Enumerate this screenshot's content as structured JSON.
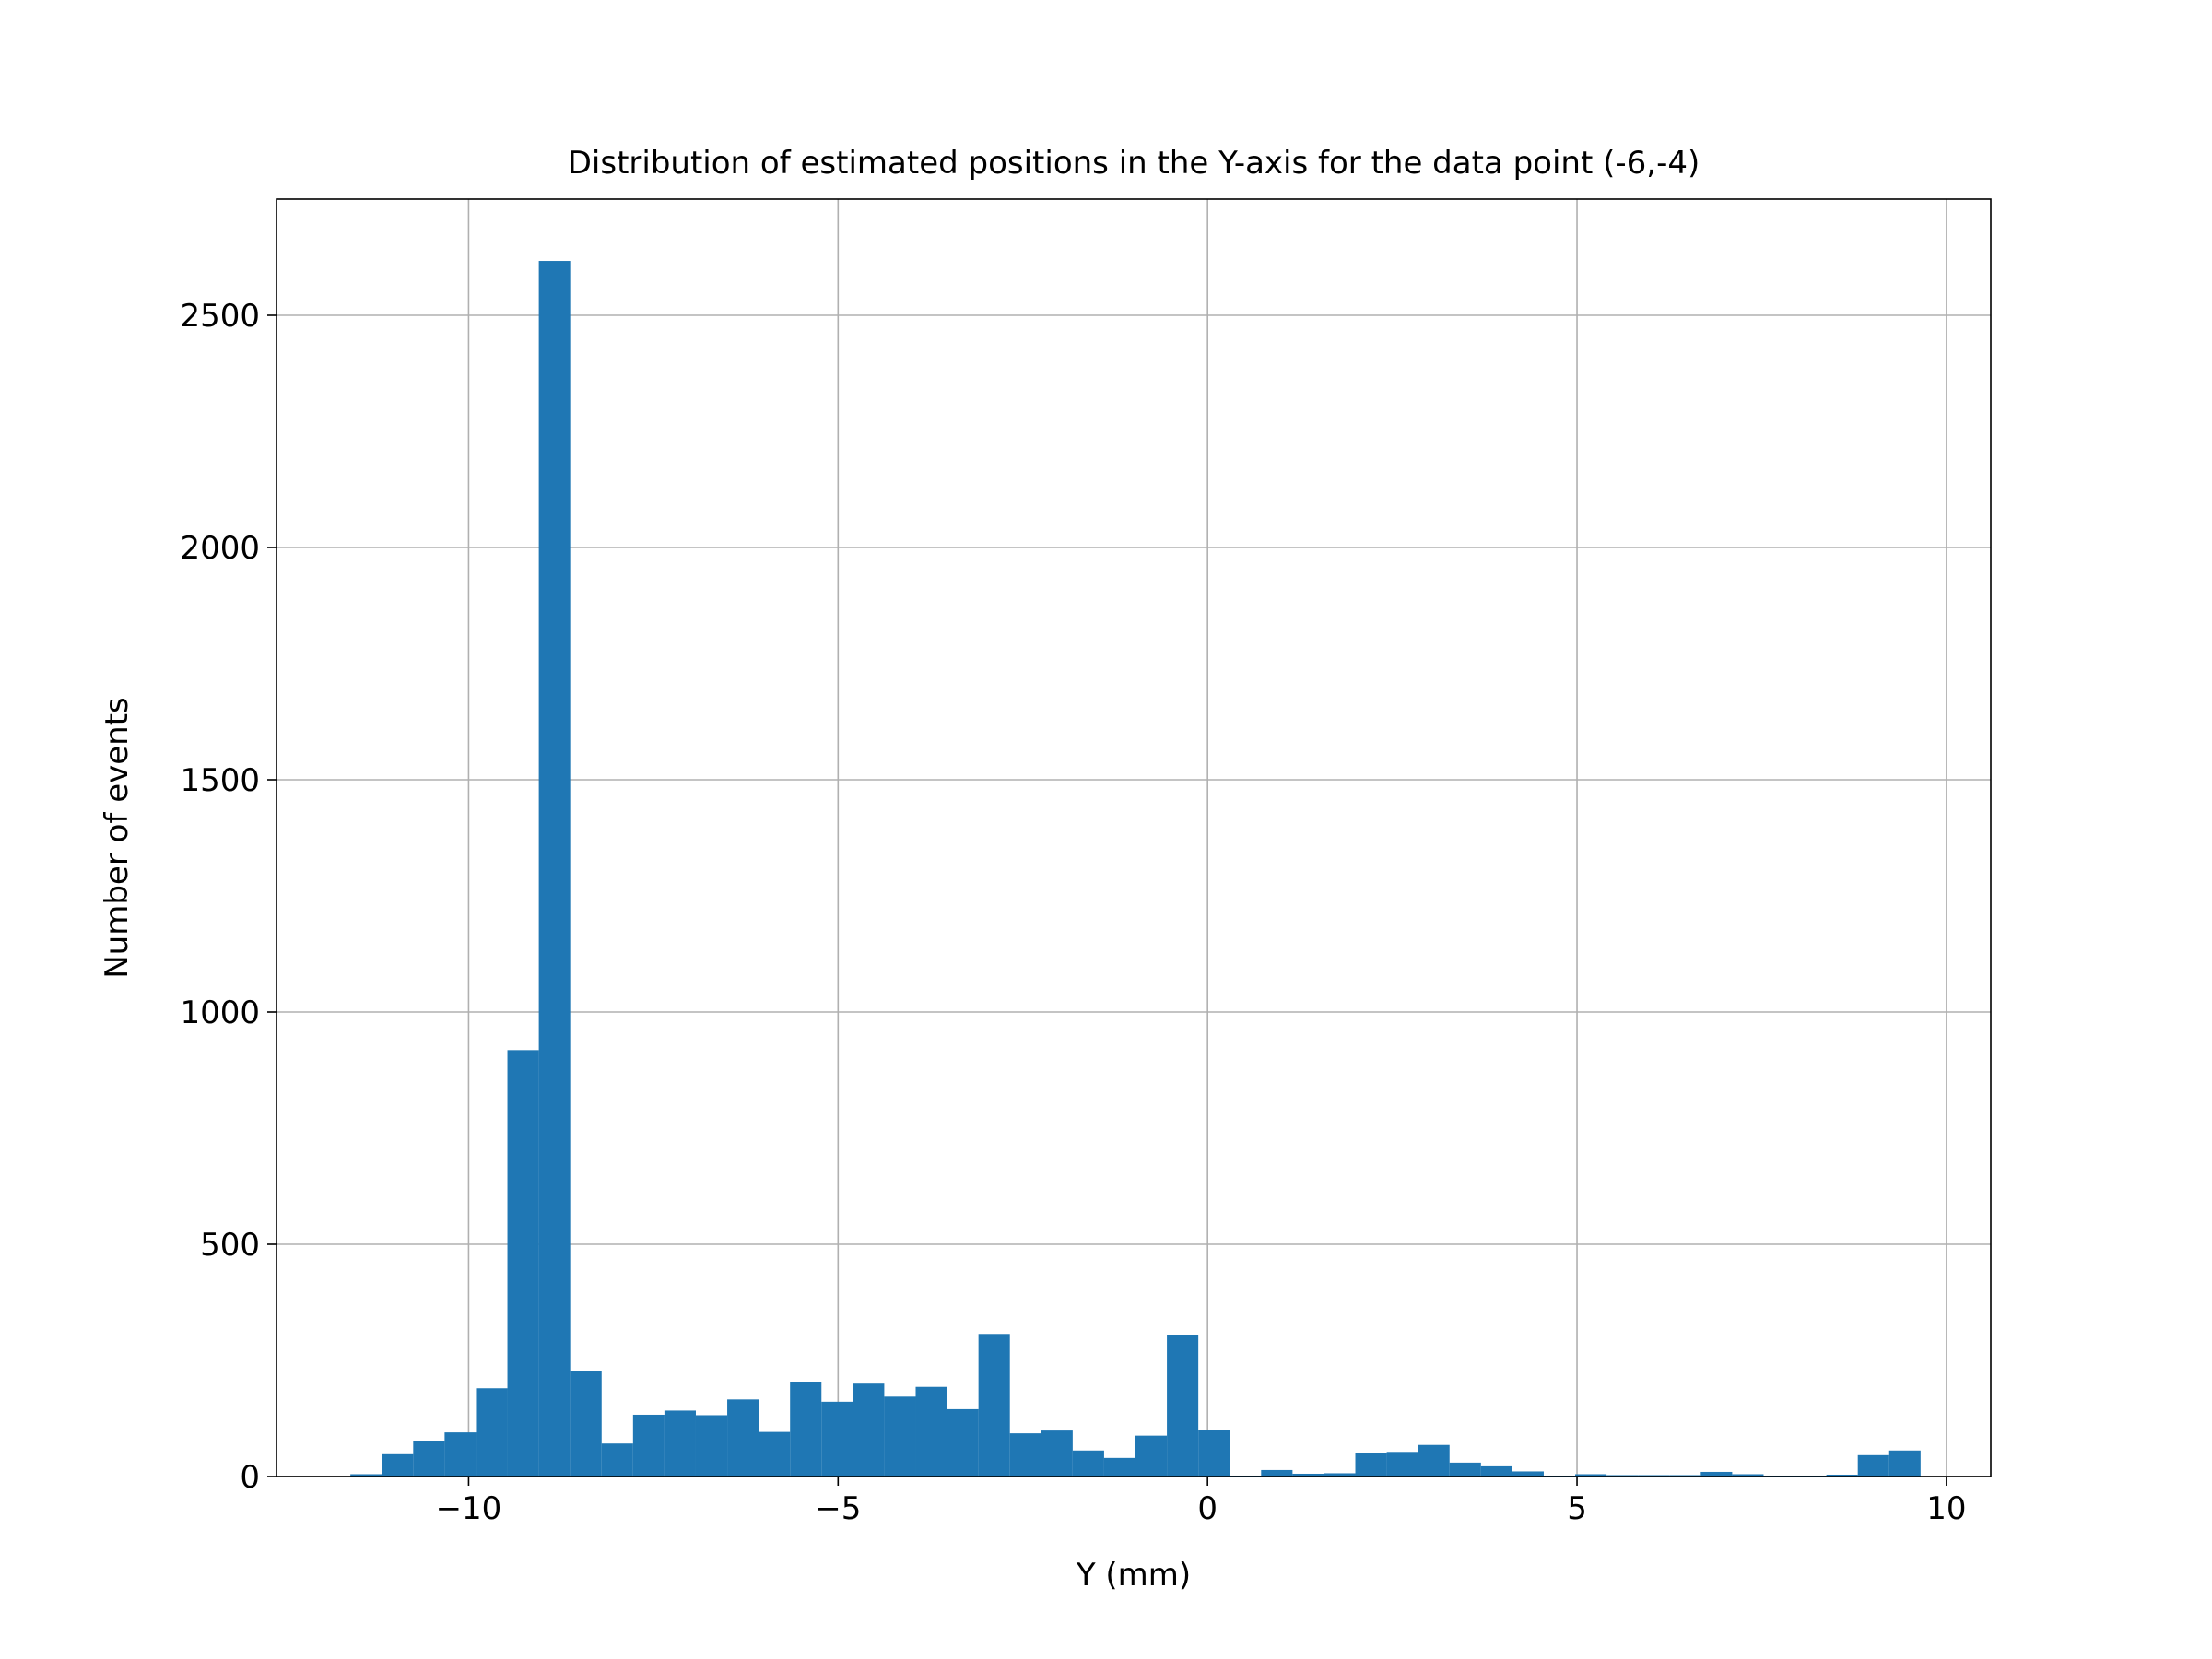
{
  "chart_data": {
    "type": "bar",
    "title": "Distribution of estimated positions in the Y-axis for the data point (-6,-4)",
    "xlabel": "Y (mm)",
    "ylabel": "Number of events",
    "xlim": [
      -12.6,
      10.6
    ],
    "ylim": [
      0,
      2750
    ],
    "xticks": [
      -10,
      -5,
      0,
      5,
      10
    ],
    "xtick_labels": [
      "−10",
      "−5",
      "0",
      "5",
      "10"
    ],
    "yticks": [
      0,
      500,
      1000,
      1500,
      2000,
      2500
    ],
    "ytick_labels": [
      "0",
      "500",
      "1000",
      "1500",
      "2000",
      "2500"
    ],
    "grid": true,
    "bar_color": "#1f77b4",
    "bin_start": -11.6,
    "bin_width": 0.425,
    "bins": [
      {
        "x0": -11.6,
        "x1": -11.175,
        "count": 5
      },
      {
        "x0": -11.175,
        "x1": -10.75,
        "count": 48
      },
      {
        "x0": -10.75,
        "x1": -10.325,
        "count": 77
      },
      {
        "x0": -10.325,
        "x1": -9.9,
        "count": 95
      },
      {
        "x0": -9.9,
        "x1": -9.475,
        "count": 190
      },
      {
        "x0": -9.475,
        "x1": -9.05,
        "count": 918
      },
      {
        "x0": -9.05,
        "x1": -8.625,
        "count": 2617
      },
      {
        "x0": -8.625,
        "x1": -8.2,
        "count": 228
      },
      {
        "x0": -8.2,
        "x1": -7.775,
        "count": 71
      },
      {
        "x0": -7.775,
        "x1": -7.35,
        "count": 133
      },
      {
        "x0": -7.35,
        "x1": -6.925,
        "count": 142
      },
      {
        "x0": -6.925,
        "x1": -6.5,
        "count": 132
      },
      {
        "x0": -6.5,
        "x1": -6.075,
        "count": 166
      },
      {
        "x0": -6.075,
        "x1": -5.65,
        "count": 96
      },
      {
        "x0": -5.65,
        "x1": -5.225,
        "count": 204
      },
      {
        "x0": -5.225,
        "x1": -4.8,
        "count": 161
      },
      {
        "x0": -4.8,
        "x1": -4.375,
        "count": 200
      },
      {
        "x0": -4.375,
        "x1": -3.95,
        "count": 172
      },
      {
        "x0": -3.95,
        "x1": -3.525,
        "count": 193
      },
      {
        "x0": -3.525,
        "x1": -3.1,
        "count": 145
      },
      {
        "x0": -3.1,
        "x1": -2.675,
        "count": 307
      },
      {
        "x0": -2.675,
        "x1": -2.25,
        "count": 93
      },
      {
        "x0": -2.25,
        "x1": -1.825,
        "count": 99
      },
      {
        "x0": -1.825,
        "x1": -1.4,
        "count": 56
      },
      {
        "x0": -1.4,
        "x1": -0.975,
        "count": 40
      },
      {
        "x0": -0.975,
        "x1": -0.55,
        "count": 88
      },
      {
        "x0": -0.55,
        "x1": -0.125,
        "count": 305
      },
      {
        "x0": -0.125,
        "x1": 0.3,
        "count": 100
      },
      {
        "x0": 0.3,
        "x1": 0.725,
        "count": 2
      },
      {
        "x0": 0.725,
        "x1": 1.15,
        "count": 14
      },
      {
        "x0": 1.15,
        "x1": 1.575,
        "count": 6
      },
      {
        "x0": 1.575,
        "x1": 2.0,
        "count": 7
      },
      {
        "x0": 2.0,
        "x1": 2.425,
        "count": 50
      },
      {
        "x0": 2.425,
        "x1": 2.85,
        "count": 53
      },
      {
        "x0": 2.85,
        "x1": 3.275,
        "count": 68
      },
      {
        "x0": 3.275,
        "x1": 3.7,
        "count": 30
      },
      {
        "x0": 3.7,
        "x1": 4.125,
        "count": 22
      },
      {
        "x0": 4.125,
        "x1": 4.55,
        "count": 11
      },
      {
        "x0": 4.55,
        "x1": 4.975,
        "count": 2
      },
      {
        "x0": 4.975,
        "x1": 5.4,
        "count": 5
      },
      {
        "x0": 5.4,
        "x1": 5.825,
        "count": 3
      },
      {
        "x0": 5.825,
        "x1": 6.25,
        "count": 3
      },
      {
        "x0": 6.25,
        "x1": 6.675,
        "count": 3
      },
      {
        "x0": 6.675,
        "x1": 7.1,
        "count": 10
      },
      {
        "x0": 7.1,
        "x1": 7.525,
        "count": 5
      },
      {
        "x0": 7.525,
        "x1": 7.95,
        "count": 2
      },
      {
        "x0": 7.95,
        "x1": 8.375,
        "count": 2
      },
      {
        "x0": 8.375,
        "x1": 8.8,
        "count": 4
      },
      {
        "x0": 8.8,
        "x1": 9.225,
        "count": 46
      },
      {
        "x0": 9.225,
        "x1": 9.65,
        "count": 56
      }
    ]
  }
}
